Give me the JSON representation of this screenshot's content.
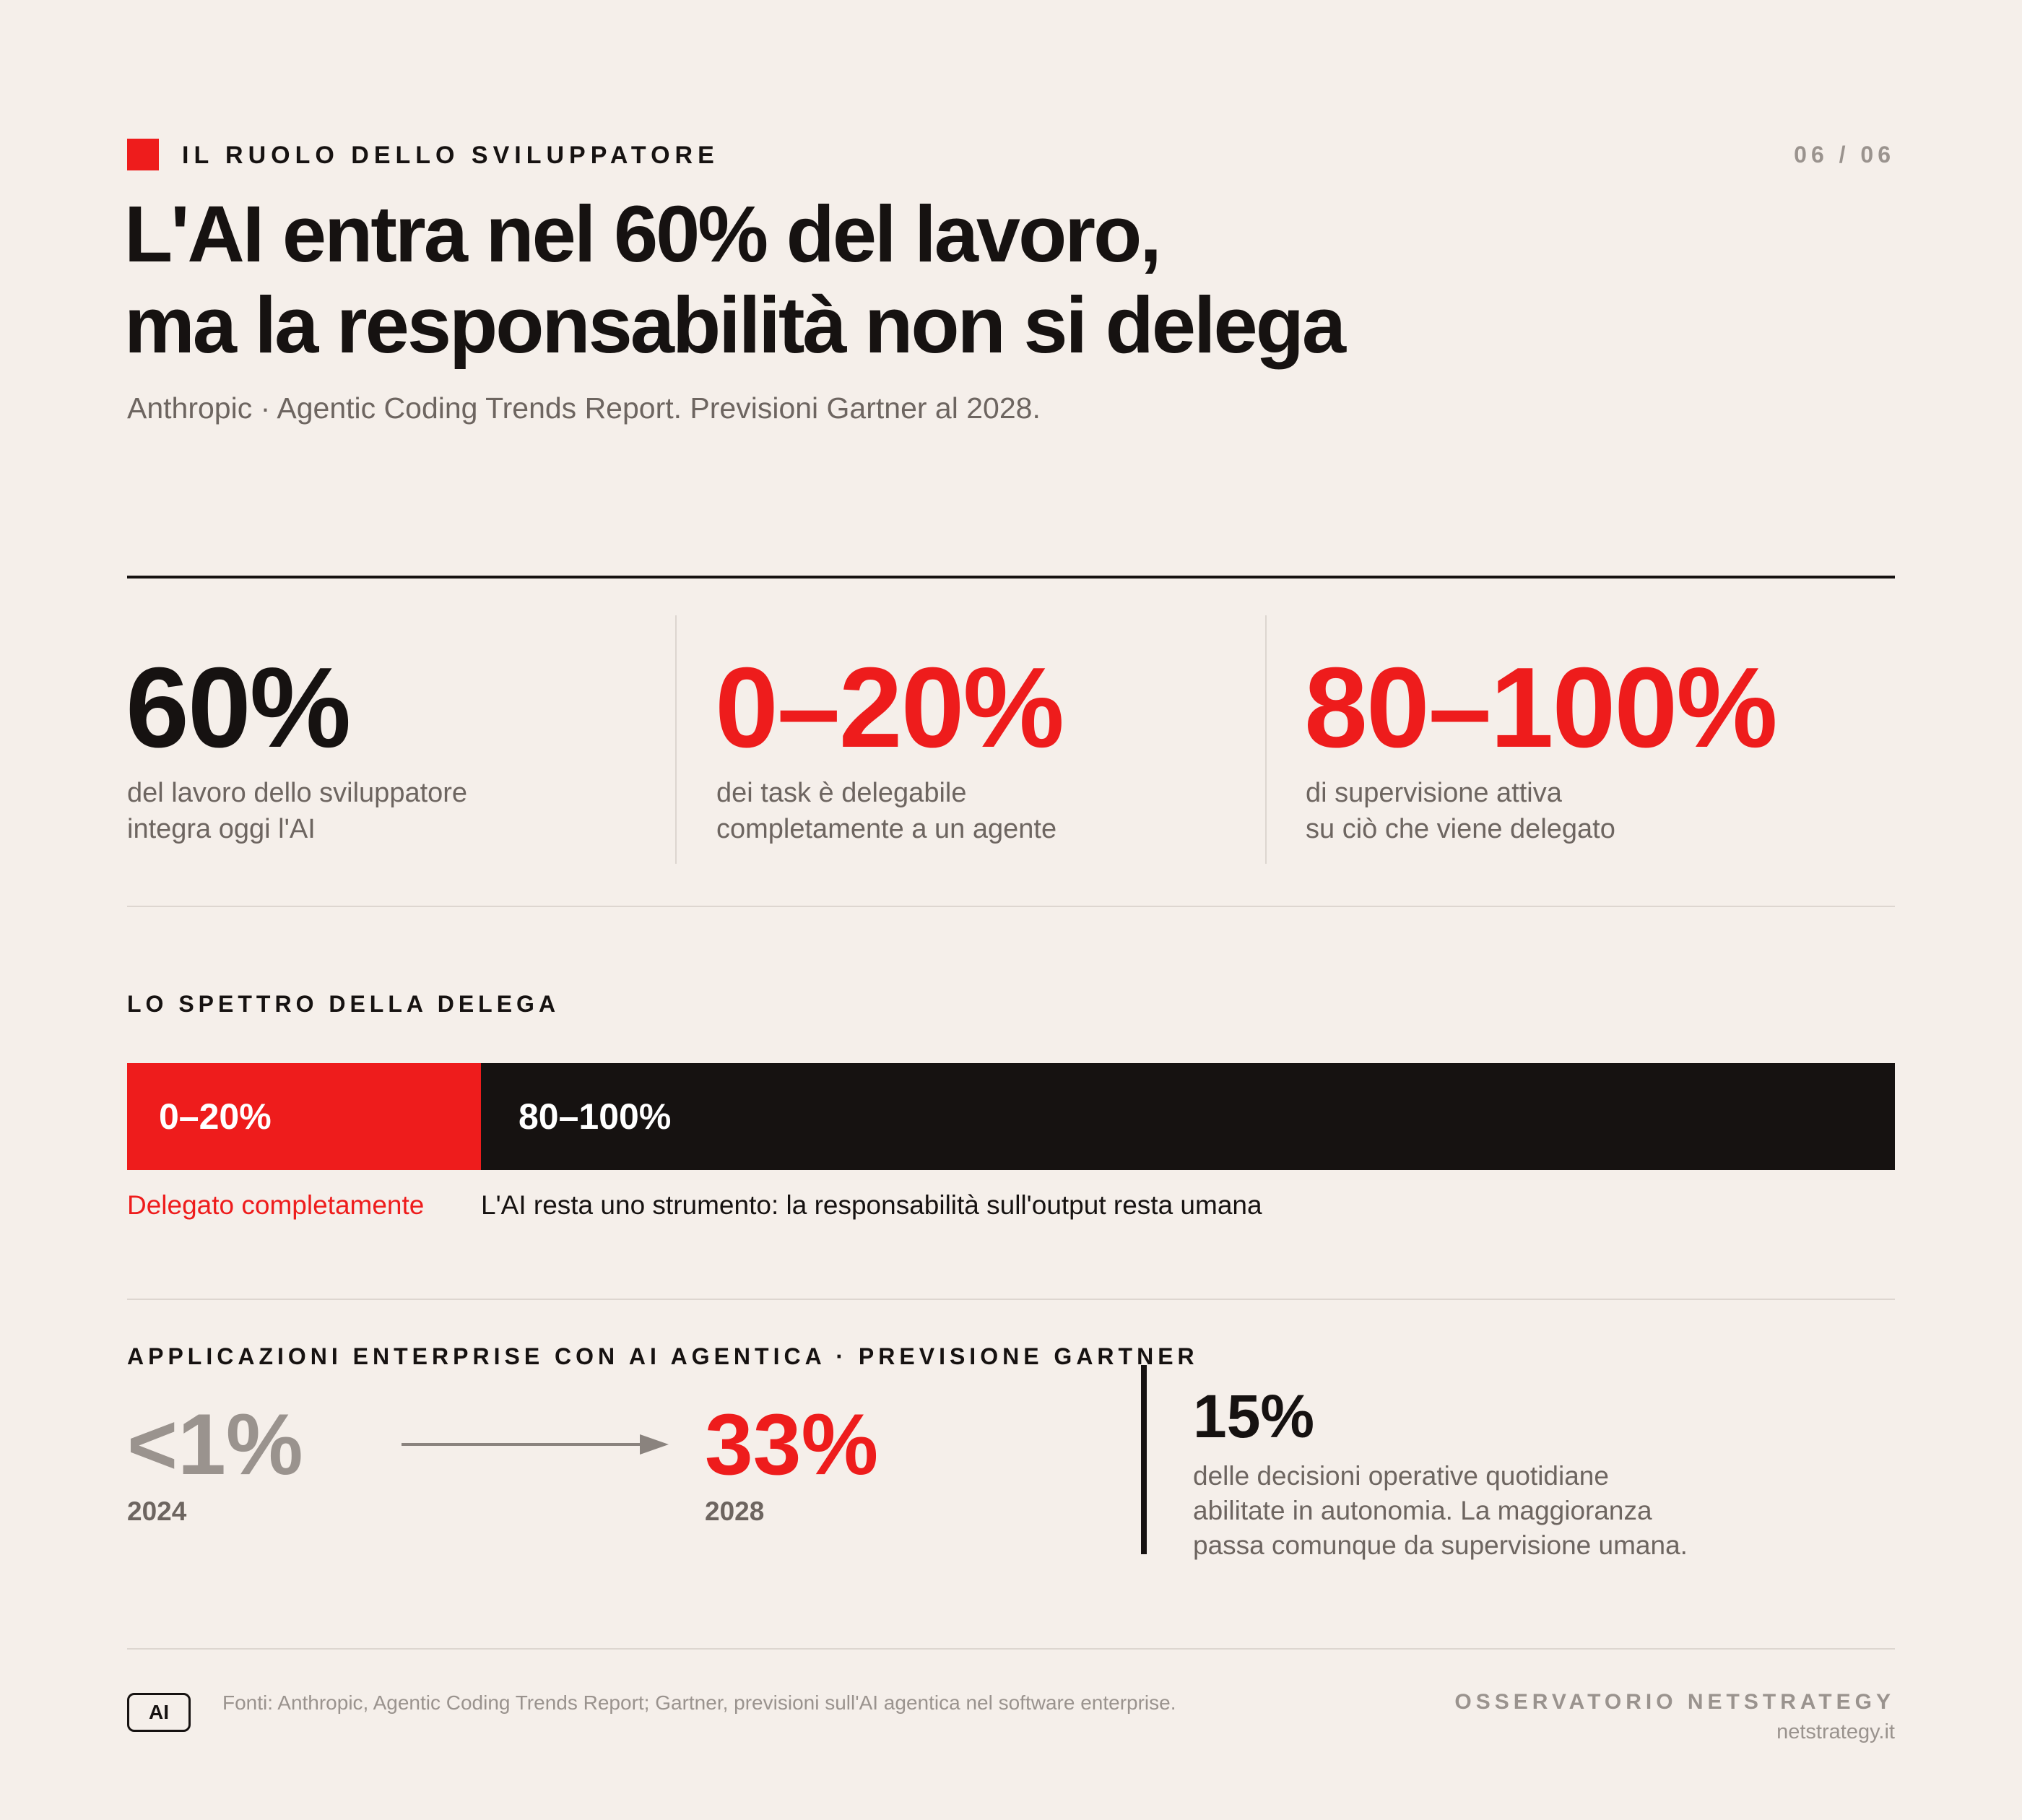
{
  "header": {
    "kicker": "IL RUOLO DELLO SVILUPPATORE",
    "pager": "06 / 06",
    "title_line1": "L'AI entra nel 60% del lavoro,",
    "title_line2": "ma la responsabilità non si delega",
    "subtitle": "Anthropic · Agentic Coding Trends Report. Previsioni Gartner al 2028."
  },
  "stats": [
    {
      "value": "60%",
      "line1": "del lavoro dello sviluppatore",
      "line2": "integra oggi l'AI",
      "color": "#161211"
    },
    {
      "value": "0–20%",
      "line1": "dei task è delegabile",
      "line2": "completamente a un agente",
      "color": "#ee1c1c"
    },
    {
      "value": "80–100%",
      "line1": "di supervisione attiva",
      "line2": "su ciò che viene delegato",
      "color": "#ee1c1c"
    }
  ],
  "spectrum": {
    "label": "LO SPETTRO DELLA DELEGA",
    "left_value": "0–20%",
    "right_value": "80–100%",
    "left_caption": "Delegato completamente",
    "right_caption": "L'AI resta uno strumento: la responsabilità sull'output resta umana"
  },
  "forecast": {
    "label": "APPLICAZIONI ENTERPRISE CON AI AGENTICA · PREVISIONE GARTNER",
    "from_value": "<1%",
    "from_year": "2024",
    "to_value": "33%",
    "to_year": "2028",
    "side_value": "15%",
    "side_line1": "delle decisioni operative quotidiane",
    "side_line2": "abilitate in autonomia. La maggioranza",
    "side_line3": "passa comunque da supervisione umana."
  },
  "footer": {
    "badge": "AI",
    "sources": "Fonti: Anthropic, Agentic Coding Trends Report; Gartner, previsioni sull'AI agentica nel software enterprise.",
    "org": "OSSERVATORIO NETSTRATEGY",
    "site": "netstrategy.it"
  },
  "colors": {
    "accent": "#ee1c1c",
    "ink": "#161211",
    "muted": "#6d6560",
    "light": "#9a938e",
    "background": "#f5efea"
  },
  "chart_data": {
    "type": "bar",
    "orientation": "horizontal-stacked",
    "categories": [
      "Delegato completamente",
      "L'AI resta uno strumento: la responsabilità sull'output resta umana"
    ],
    "values": [
      20,
      80
    ],
    "value_labels": [
      "0–20%",
      "80–100%"
    ],
    "title": "LO SPETTRO DELLA DELEGA"
  }
}
